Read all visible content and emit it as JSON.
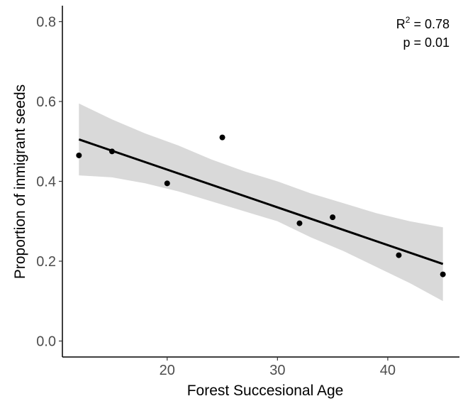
{
  "chart_data": {
    "type": "scatter",
    "xlabel": "Forest Succesional Age",
    "ylabel": "Proportion of inmigrant seeds",
    "xlim": [
      10.5,
      46.5
    ],
    "ylim": [
      -0.04,
      0.84
    ],
    "x_ticks": [
      20,
      30,
      40
    ],
    "x_tick_labels": [
      "20",
      "30",
      "40"
    ],
    "y_ticks": [
      0.0,
      0.2,
      0.4,
      0.6,
      0.8
    ],
    "y_tick_labels": [
      "0.0",
      "0.2",
      "0.4",
      "0.6",
      "0.8"
    ],
    "grid": false,
    "points": [
      {
        "x": 12,
        "y": 0.465
      },
      {
        "x": 15,
        "y": 0.475
      },
      {
        "x": 20,
        "y": 0.395
      },
      {
        "x": 25,
        "y": 0.51
      },
      {
        "x": 32,
        "y": 0.295
      },
      {
        "x": 35,
        "y": 0.31
      },
      {
        "x": 41,
        "y": 0.215
      },
      {
        "x": 45,
        "y": 0.167
      }
    ],
    "fit_line": {
      "x": [
        12,
        45
      ],
      "y": [
        0.505,
        0.193
      ]
    },
    "confidence_band": {
      "x": [
        12,
        15,
        18,
        21,
        24,
        27,
        30,
        33,
        36,
        39,
        42,
        45
      ],
      "lower": [
        0.415,
        0.41,
        0.395,
        0.375,
        0.35,
        0.325,
        0.3,
        0.26,
        0.225,
        0.185,
        0.145,
        0.1
      ],
      "upper": [
        0.595,
        0.555,
        0.52,
        0.49,
        0.455,
        0.425,
        0.4,
        0.37,
        0.345,
        0.32,
        0.3,
        0.285
      ]
    },
    "annotation": {
      "r2_base": "R",
      "r2_sup": "2",
      "r2_value": " = 0.78",
      "p_text": "p = 0.01"
    },
    "colors": {
      "points": "#000000",
      "line": "#000000",
      "band": "#d9d9d9",
      "axis": "#000000",
      "ticks": "#4d4d4d"
    }
  }
}
